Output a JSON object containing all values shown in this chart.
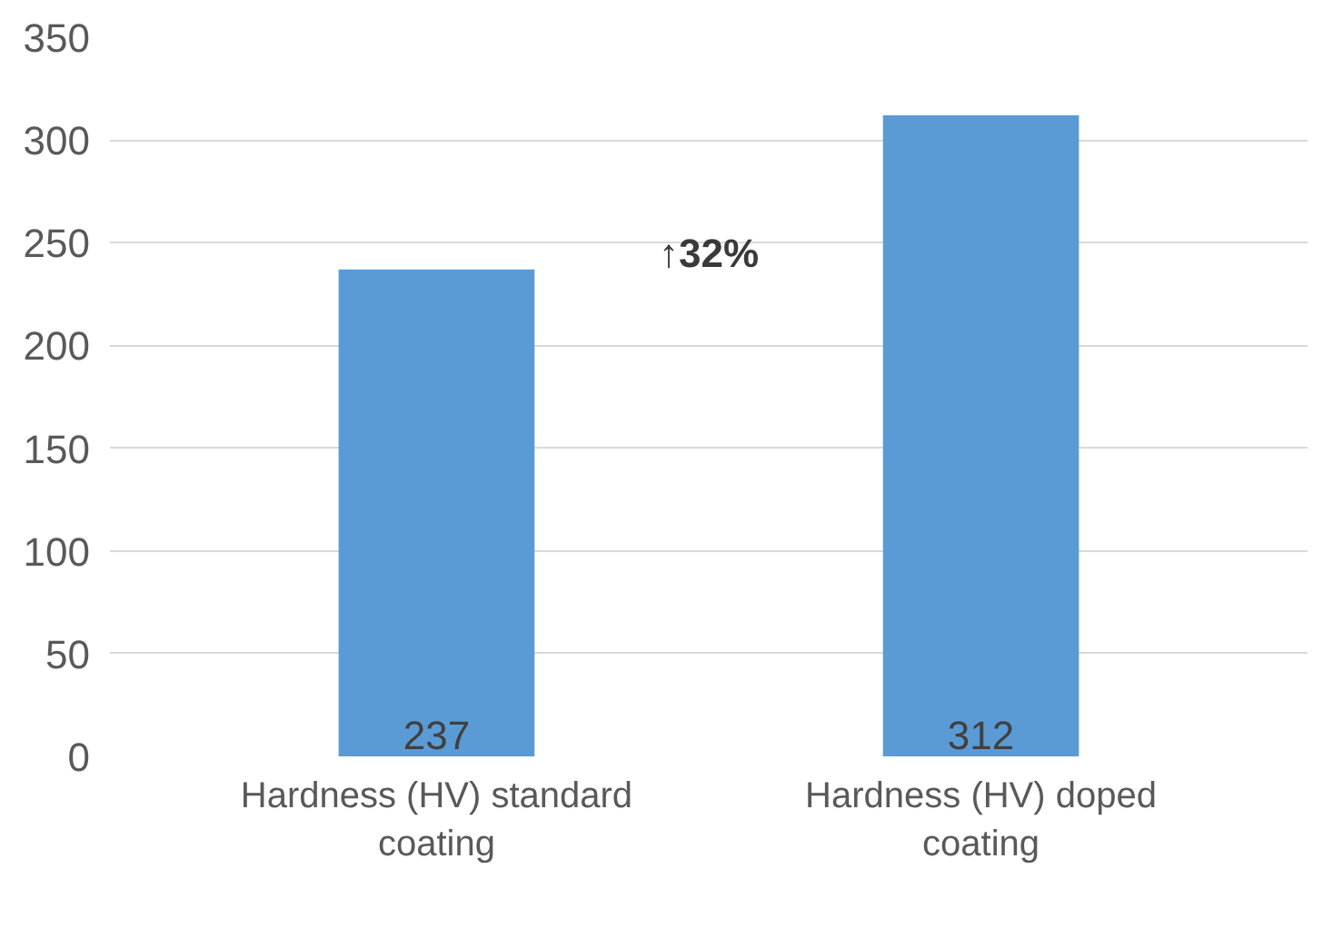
{
  "chart_data": {
    "type": "bar",
    "categories": [
      "Hardness (HV) standard coating",
      "Hardness (HV) doped coating"
    ],
    "values": [
      237,
      312
    ],
    "color": "#5b9bd5",
    "ylim": [
      0,
      350
    ],
    "yticks": [
      0,
      50,
      100,
      150,
      200,
      250,
      300,
      350
    ],
    "grid": "y",
    "data_labels": true,
    "annotations": [
      "↑32%"
    ]
  }
}
